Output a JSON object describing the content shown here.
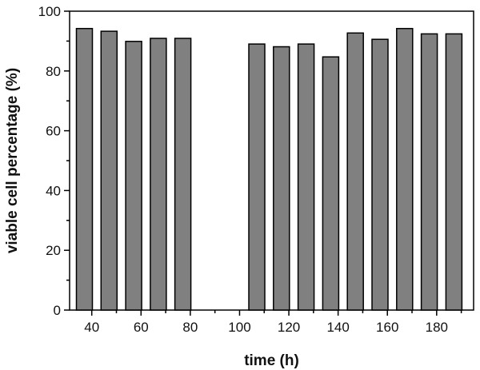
{
  "chart_data": {
    "type": "bar",
    "title": "",
    "xlabel": "time (h)",
    "ylabel": "viable cell percentage (%)",
    "xlim": [
      31,
      195
    ],
    "ylim": [
      0,
      100
    ],
    "x_ticks": [
      40,
      60,
      80,
      100,
      120,
      140,
      160,
      180
    ],
    "y_ticks": [
      0,
      20,
      40,
      60,
      80,
      100
    ],
    "bar_color": "#808080",
    "bar_edge_color": "#000000",
    "grid": false,
    "legend": "none",
    "series": [
      {
        "x": [
          37,
          47,
          57,
          67,
          77,
          107,
          117,
          127,
          137,
          147,
          157,
          167,
          177,
          187
        ],
        "values": [
          94.2,
          93.3,
          89.9,
          90.9,
          90.9,
          89.0,
          88.1,
          89.0,
          84.7,
          92.7,
          90.6,
          94.2,
          92.4,
          92.4
        ]
      }
    ]
  }
}
